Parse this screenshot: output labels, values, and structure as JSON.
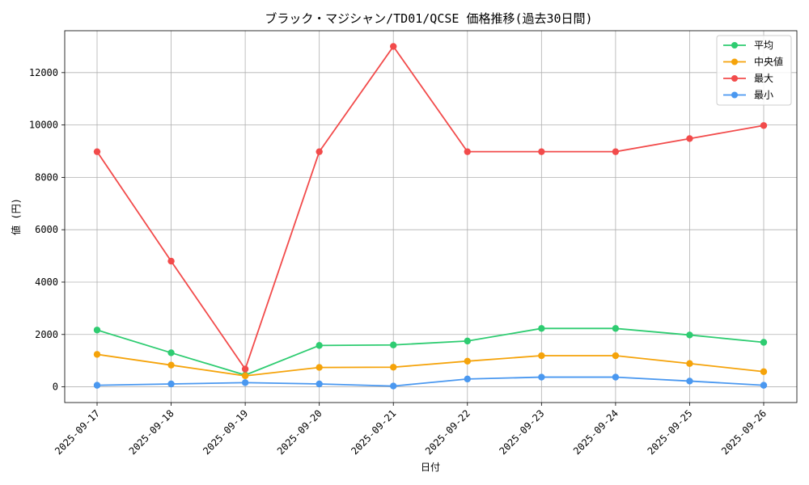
{
  "chart_data": {
    "type": "line",
    "title": "ブラック・マジシャン/TD01/QCSE 価格推移(過去30日間)",
    "xlabel": "日付",
    "ylabel": "値 (円)",
    "x": [
      "2025-09-17",
      "2025-09-18",
      "2025-09-19",
      "2025-09-20",
      "2025-09-21",
      "2025-09-22",
      "2025-09-23",
      "2025-09-24",
      "2025-09-25",
      "2025-09-26"
    ],
    "yticks": [
      0,
      2000,
      4000,
      6000,
      8000,
      10000,
      12000
    ],
    "ylim": [
      -600,
      13600
    ],
    "grid": true,
    "legend_position": "top-right",
    "series": [
      {
        "name": "平均",
        "color": "#2ecc71",
        "values": [
          2170,
          1300,
          450,
          1580,
          1600,
          1750,
          2230,
          2230,
          1980,
          1700
        ]
      },
      {
        "name": "中央値",
        "color": "#f5a30a",
        "values": [
          1240,
          830,
          420,
          740,
          750,
          980,
          1190,
          1190,
          890,
          580
        ]
      },
      {
        "name": "最大",
        "color": "#f24b4b",
        "values": [
          8980,
          4800,
          680,
          8980,
          13000,
          8980,
          8980,
          8980,
          9480,
          9980
        ]
      },
      {
        "name": "最小",
        "color": "#4a98f0",
        "values": [
          60,
          110,
          160,
          110,
          30,
          300,
          370,
          370,
          220,
          60
        ]
      }
    ]
  }
}
